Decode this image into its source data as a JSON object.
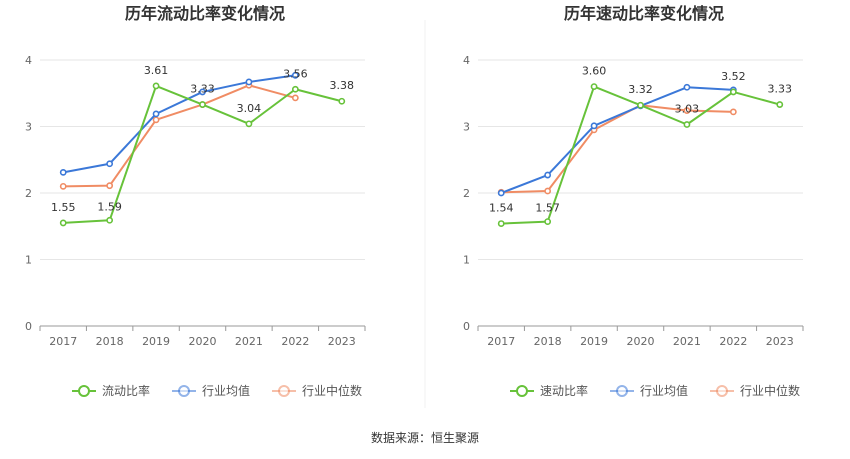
{
  "source": "数据来源：恒生聚源",
  "colors": {
    "company": "#67c23a",
    "avg": "#3b78d8",
    "median": "#f08c64"
  },
  "chart_data": [
    {
      "type": "line",
      "title": "历年流动比率变化情况",
      "categories": [
        "2017",
        "2018",
        "2019",
        "2020",
        "2021",
        "2022",
        "2023"
      ],
      "ylim": [
        0,
        4
      ],
      "yticks": [
        0,
        1,
        2,
        3,
        4
      ],
      "series": [
        {
          "name": "流动比率",
          "key": "company",
          "values": [
            1.55,
            1.59,
            3.61,
            3.33,
            3.04,
            3.56,
            3.38
          ],
          "labels": [
            "1.55",
            "1.59",
            "3.61",
            "3.33",
            "3.04",
            "3.56",
            "3.38"
          ]
        },
        {
          "name": "行业均值",
          "key": "avg",
          "values": [
            2.31,
            2.44,
            3.19,
            3.52,
            3.67,
            3.77,
            null
          ]
        },
        {
          "name": "行业中位数",
          "key": "median",
          "values": [
            2.1,
            2.11,
            3.1,
            3.33,
            3.62,
            3.43,
            null
          ]
        }
      ]
    },
    {
      "type": "line",
      "title": "历年速动比率变化情况",
      "categories": [
        "2017",
        "2018",
        "2019",
        "2020",
        "2021",
        "2022",
        "2023"
      ],
      "ylim": [
        0,
        4
      ],
      "yticks": [
        0,
        1,
        2,
        3,
        4
      ],
      "series": [
        {
          "name": "速动比率",
          "key": "company",
          "values": [
            1.54,
            1.57,
            3.6,
            3.32,
            3.03,
            3.52,
            3.33
          ],
          "labels": [
            "1.54",
            "1.57",
            "3.60",
            "3.32",
            "3.03",
            "3.52",
            "3.33"
          ]
        },
        {
          "name": "行业均值",
          "key": "avg",
          "values": [
            2.0,
            2.27,
            3.01,
            3.31,
            3.59,
            3.55,
            null
          ]
        },
        {
          "name": "行业中位数",
          "key": "median",
          "values": [
            2.01,
            2.03,
            2.95,
            3.32,
            3.24,
            3.22,
            null
          ]
        }
      ]
    }
  ]
}
